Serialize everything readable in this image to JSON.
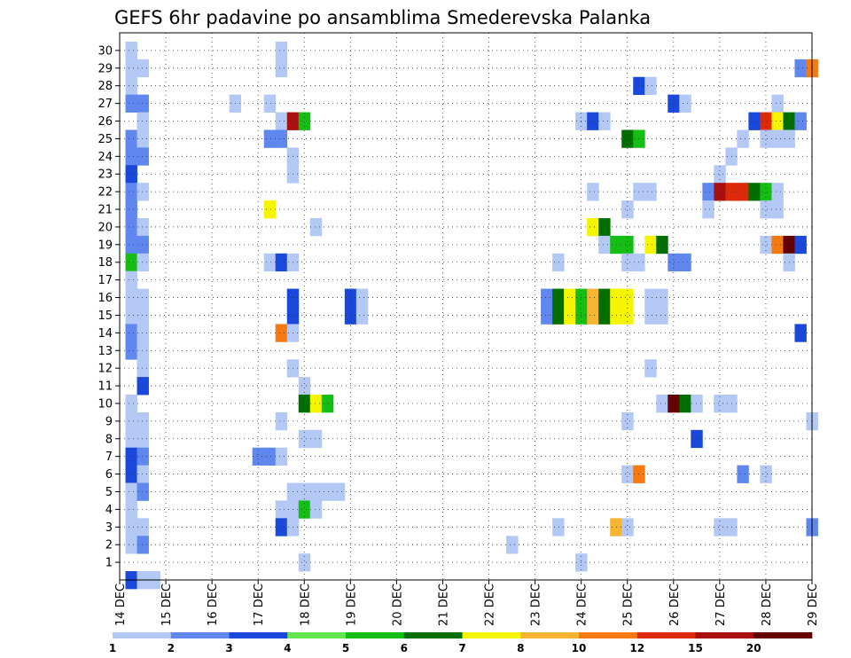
{
  "chart_data": {
    "type": "heatmap",
    "title": "GEFS 6hr padavine po ansamblima Smederevska Palanka",
    "y_ticks": [
      "1",
      "2",
      "3",
      "4",
      "5",
      "6",
      "7",
      "8",
      "9",
      "10",
      "11",
      "12",
      "13",
      "14",
      "15",
      "16",
      "17",
      "18",
      "19",
      "20",
      "21",
      "22",
      "23",
      "24",
      "25",
      "26",
      "27",
      "28",
      "29",
      "30"
    ],
    "x_ticks": [
      "14 DEC",
      "15 DEC",
      "16 DEC",
      "17 DEC",
      "18 DEC",
      "19 DEC",
      "20 DEC",
      "21 DEC",
      "22 DEC",
      "23 DEC",
      "24 DEC",
      "25 DEC",
      "26 DEC",
      "27 DEC",
      "28 DEC",
      "29 DEC"
    ],
    "xlim": [
      0,
      60
    ],
    "ylim": [
      0,
      31
    ],
    "x_unit": "6-hour steps from 14 DEC",
    "y_unit": "ensemble member",
    "grid": true,
    "legend": {
      "placement": "bottom",
      "labels": [
        "1",
        "2",
        "3",
        "4",
        "5",
        "6",
        "7",
        "8",
        "10",
        "12",
        "15",
        "20"
      ],
      "colors": [
        "#b4c8f5",
        "#5f87ed",
        "#1a48da",
        "#64e650",
        "#14be14",
        "#006e00",
        "#f5f500",
        "#f5b432",
        "#f57a12",
        "#dc2a0a",
        "#aa0f0f",
        "#640000"
      ]
    },
    "cells": [
      [
        30,
        1,
        1
      ],
      [
        30,
        14,
        1
      ],
      [
        29,
        1,
        1
      ],
      [
        29,
        2,
        1
      ],
      [
        29,
        14,
        1
      ],
      [
        29,
        59,
        2
      ],
      [
        29,
        60,
        10
      ],
      [
        28,
        1,
        1
      ],
      [
        28,
        45,
        3
      ],
      [
        28,
        46,
        1
      ],
      [
        27,
        1,
        2
      ],
      [
        27,
        2,
        2
      ],
      [
        27,
        10,
        1
      ],
      [
        27,
        13,
        1
      ],
      [
        27,
        48,
        3
      ],
      [
        27,
        49,
        1
      ],
      [
        27,
        57,
        1
      ],
      [
        26,
        2,
        1
      ],
      [
        26,
        14,
        1
      ],
      [
        26,
        15,
        15
      ],
      [
        26,
        16,
        5
      ],
      [
        26,
        40,
        1
      ],
      [
        26,
        41,
        3
      ],
      [
        26,
        42,
        1
      ],
      [
        26,
        55,
        3
      ],
      [
        26,
        56,
        12
      ],
      [
        26,
        57,
        7
      ],
      [
        26,
        58,
        6
      ],
      [
        26,
        59,
        2
      ],
      [
        25,
        1,
        2
      ],
      [
        25,
        2,
        1
      ],
      [
        25,
        13,
        2
      ],
      [
        25,
        14,
        2
      ],
      [
        25,
        44,
        6
      ],
      [
        25,
        45,
        5
      ],
      [
        25,
        54,
        1
      ],
      [
        25,
        56,
        1
      ],
      [
        25,
        57,
        1
      ],
      [
        25,
        58,
        1
      ],
      [
        24,
        1,
        2
      ],
      [
        24,
        2,
        2
      ],
      [
        24,
        15,
        1
      ],
      [
        24,
        53,
        1
      ],
      [
        23,
        1,
        3
      ],
      [
        23,
        15,
        1
      ],
      [
        23,
        52,
        1
      ],
      [
        22,
        1,
        2
      ],
      [
        22,
        2,
        1
      ],
      [
        22,
        41,
        1
      ],
      [
        22,
        45,
        1
      ],
      [
        22,
        46,
        1
      ],
      [
        22,
        51,
        2
      ],
      [
        22,
        52,
        15
      ],
      [
        22,
        53,
        12
      ],
      [
        22,
        54,
        12
      ],
      [
        22,
        55,
        6
      ],
      [
        22,
        56,
        5
      ],
      [
        22,
        57,
        1
      ],
      [
        21,
        1,
        2
      ],
      [
        21,
        13,
        7
      ],
      [
        21,
        44,
        1
      ],
      [
        21,
        51,
        1
      ],
      [
        21,
        56,
        1
      ],
      [
        21,
        57,
        1
      ],
      [
        20,
        1,
        2
      ],
      [
        20,
        2,
        1
      ],
      [
        20,
        17,
        1
      ],
      [
        20,
        41,
        7
      ],
      [
        20,
        42,
        6
      ],
      [
        19,
        1,
        2
      ],
      [
        19,
        2,
        2
      ],
      [
        19,
        42,
        1
      ],
      [
        19,
        43,
        5
      ],
      [
        19,
        44,
        5
      ],
      [
        19,
        46,
        7
      ],
      [
        19,
        47,
        6
      ],
      [
        19,
        56,
        1
      ],
      [
        19,
        57,
        10
      ],
      [
        19,
        58,
        20
      ],
      [
        19,
        59,
        3
      ],
      [
        18,
        1,
        5
      ],
      [
        18,
        2,
        1
      ],
      [
        18,
        13,
        1
      ],
      [
        18,
        14,
        3
      ],
      [
        18,
        15,
        1
      ],
      [
        18,
        38,
        1
      ],
      [
        18,
        44,
        1
      ],
      [
        18,
        45,
        1
      ],
      [
        18,
        48,
        2
      ],
      [
        18,
        49,
        2
      ],
      [
        18,
        58,
        1
      ],
      [
        17,
        1,
        1
      ],
      [
        16,
        1,
        1
      ],
      [
        16,
        2,
        1
      ],
      [
        16,
        15,
        3
      ],
      [
        16,
        20,
        3
      ],
      [
        16,
        21,
        1
      ],
      [
        16,
        37,
        2
      ],
      [
        16,
        38,
        6
      ],
      [
        16,
        39,
        7
      ],
      [
        16,
        40,
        5
      ],
      [
        16,
        41,
        8
      ],
      [
        16,
        42,
        6
      ],
      [
        16,
        43,
        7
      ],
      [
        16,
        44,
        7
      ],
      [
        16,
        46,
        1
      ],
      [
        16,
        47,
        1
      ],
      [
        15,
        1,
        1
      ],
      [
        15,
        2,
        1
      ],
      [
        15,
        15,
        3
      ],
      [
        15,
        20,
        3
      ],
      [
        15,
        21,
        1
      ],
      [
        15,
        37,
        2
      ],
      [
        15,
        38,
        6
      ],
      [
        15,
        39,
        7
      ],
      [
        15,
        40,
        5
      ],
      [
        15,
        41,
        8
      ],
      [
        15,
        42,
        6
      ],
      [
        15,
        43,
        7
      ],
      [
        15,
        44,
        7
      ],
      [
        15,
        46,
        1
      ],
      [
        15,
        47,
        1
      ],
      [
        14,
        1,
        2
      ],
      [
        14,
        2,
        1
      ],
      [
        14,
        14,
        10
      ],
      [
        14,
        15,
        1
      ],
      [
        14,
        59,
        3
      ],
      [
        13,
        1,
        2
      ],
      [
        13,
        2,
        1
      ],
      [
        12,
        2,
        1
      ],
      [
        12,
        15,
        1
      ],
      [
        12,
        46,
        1
      ],
      [
        11,
        2,
        3
      ],
      [
        11,
        16,
        1
      ],
      [
        10,
        1,
        1
      ],
      [
        10,
        16,
        6
      ],
      [
        10,
        17,
        7
      ],
      [
        10,
        18,
        5
      ],
      [
        10,
        47,
        1
      ],
      [
        10,
        48,
        20
      ],
      [
        10,
        49,
        6
      ],
      [
        10,
        50,
        1
      ],
      [
        10,
        52,
        1
      ],
      [
        10,
        53,
        1
      ],
      [
        9,
        1,
        1
      ],
      [
        9,
        2,
        1
      ],
      [
        9,
        14,
        1
      ],
      [
        9,
        44,
        1
      ],
      [
        9,
        60,
        1
      ],
      [
        8,
        1,
        1
      ],
      [
        8,
        2,
        1
      ],
      [
        8,
        16,
        1
      ],
      [
        8,
        17,
        1
      ],
      [
        8,
        50,
        3
      ],
      [
        7,
        1,
        3
      ],
      [
        7,
        2,
        2
      ],
      [
        7,
        12,
        2
      ],
      [
        7,
        13,
        2
      ],
      [
        7,
        14,
        1
      ],
      [
        6,
        1,
        3
      ],
      [
        6,
        2,
        1
      ],
      [
        6,
        44,
        1
      ],
      [
        6,
        45,
        10
      ],
      [
        6,
        54,
        2
      ],
      [
        6,
        56,
        1
      ],
      [
        5,
        1,
        1
      ],
      [
        5,
        2,
        2
      ],
      [
        5,
        15,
        1
      ],
      [
        5,
        16,
        1
      ],
      [
        5,
        17,
        1
      ],
      [
        5,
        18,
        1
      ],
      [
        5,
        19,
        1
      ],
      [
        4,
        1,
        1
      ],
      [
        4,
        14,
        1
      ],
      [
        4,
        15,
        1
      ],
      [
        4,
        16,
        5
      ],
      [
        4,
        17,
        1
      ],
      [
        3,
        1,
        1
      ],
      [
        3,
        2,
        1
      ],
      [
        3,
        14,
        3
      ],
      [
        3,
        15,
        1
      ],
      [
        3,
        38,
        1
      ],
      [
        3,
        43,
        8
      ],
      [
        3,
        44,
        1
      ],
      [
        3,
        52,
        1
      ],
      [
        3,
        53,
        1
      ],
      [
        3,
        60,
        2
      ],
      [
        2,
        1,
        1
      ],
      [
        2,
        2,
        2
      ],
      [
        2,
        34,
        1
      ],
      [
        1,
        16,
        1
      ],
      [
        1,
        40,
        1
      ],
      [
        0,
        1,
        3
      ],
      [
        0,
        2,
        1
      ],
      [
        0,
        3,
        1
      ]
    ]
  }
}
